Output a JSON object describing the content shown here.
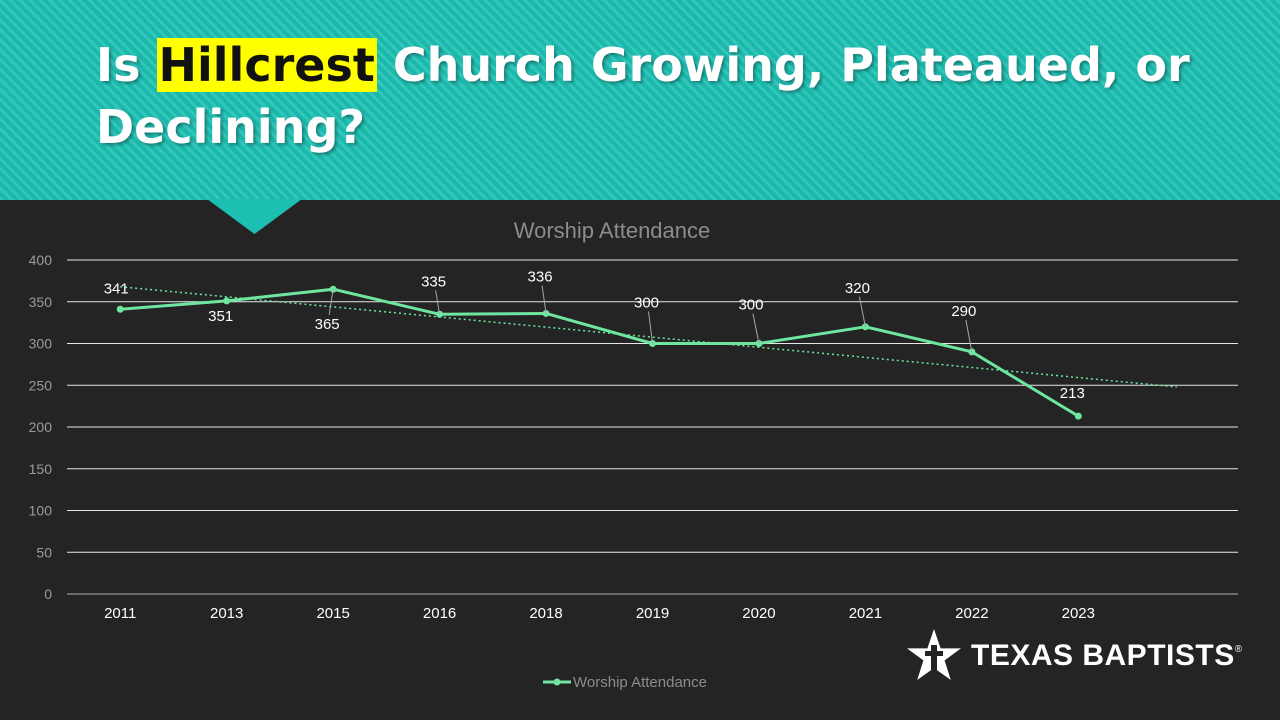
{
  "slide": {
    "title_prefix": "Is",
    "title_highlight": "Hillcrest",
    "title_suffix": "Church Growing, Plateaued, or Declining?"
  },
  "logo": {
    "text": "TEXAS BAPTISTS",
    "mark": "®"
  },
  "colors": {
    "banner": "#1cbfb2",
    "highlight": "#ffff00",
    "background": "#242424",
    "series": "#6ee6a0"
  },
  "chart_data": {
    "type": "line",
    "title": "Worship Attendance",
    "categories": [
      "2011",
      "2013",
      "2015",
      "2016",
      "2018",
      "2019",
      "2020",
      "2021",
      "2022",
      "2023"
    ],
    "series": [
      {
        "name": "Worship Attendance",
        "values": [
          341,
          351,
          365,
          335,
          336,
          300,
          300,
          320,
          290,
          213
        ]
      }
    ],
    "trendline": {
      "type": "linear",
      "style": "dotted",
      "start": 368,
      "end": 248
    },
    "ylim": [
      0,
      400
    ],
    "yticks": [
      0,
      50,
      100,
      150,
      200,
      250,
      300,
      350,
      400
    ],
    "grid": true,
    "legend": "bottom",
    "data_labels": true
  }
}
